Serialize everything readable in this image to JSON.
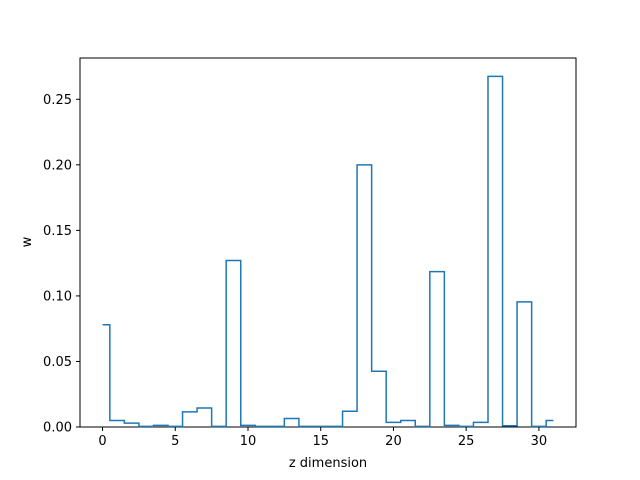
{
  "chart_data": {
    "type": "step",
    "title": "",
    "xlabel": "z dimension",
    "ylabel": "w",
    "xlim": [
      -1.55,
      32.55
    ],
    "ylim": [
      0,
      0.2815
    ],
    "xticks": [
      0,
      5,
      10,
      15,
      20,
      25,
      30
    ],
    "xtick_labels": [
      "0",
      "5",
      "10",
      "15",
      "20",
      "25",
      "30"
    ],
    "yticks": [
      0.0,
      0.05,
      0.1,
      0.15,
      0.2,
      0.25
    ],
    "ytick_labels": [
      "0.00",
      "0.05",
      "0.10",
      "0.15",
      "0.20",
      "0.25"
    ],
    "grid": false,
    "series": [
      {
        "color": "#1f77b4",
        "x": [
          0,
          1,
          2,
          3,
          4,
          5,
          6,
          7,
          8,
          9,
          10,
          11,
          12,
          13,
          14,
          15,
          16,
          17,
          18,
          19,
          20,
          21,
          22,
          23,
          24,
          25,
          26,
          27,
          28,
          29,
          30,
          31
        ],
        "values": [
          0.078,
          0.005,
          0.003,
          0.0005,
          0.0012,
          0.0005,
          0.0115,
          0.0145,
          0.0005,
          0.127,
          0.0012,
          0.0005,
          0.0005,
          0.0065,
          0.0005,
          0.0005,
          0.0005,
          0.012,
          0.2,
          0.0425,
          0.0035,
          0.005,
          0.0005,
          0.1185,
          0.0012,
          0.0005,
          0.0035,
          0.2675,
          0.001,
          0.0955,
          0.0005,
          0.005
        ]
      }
    ]
  }
}
